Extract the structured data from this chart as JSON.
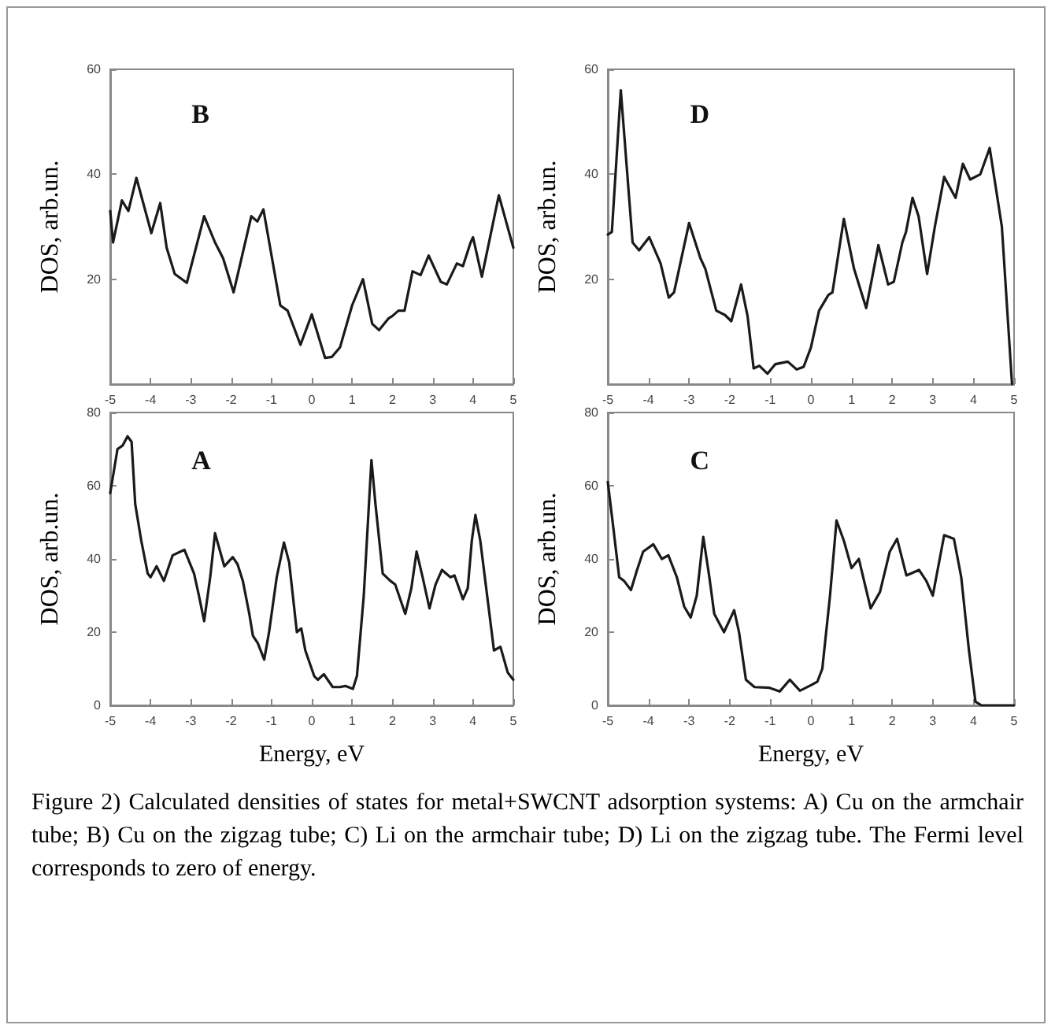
{
  "chart_data": [
    {
      "type": "line",
      "ylabel": "DOS, arb.un.",
      "annotations": [
        "B"
      ],
      "xlim": [
        -5,
        5
      ],
      "xticks": [
        -5,
        -4,
        -3,
        -2,
        -1,
        0,
        1,
        2,
        3,
        4,
        5
      ],
      "ylim": [
        0,
        60
      ],
      "yticks": [
        20,
        40,
        60
      ],
      "grid": false,
      "marker": "none",
      "line_style": "solid",
      "series": [
        {
          "color": "#1a1a1a",
          "x": [
            -5,
            -4.93,
            -4.71,
            -4.55,
            -4.35,
            -3.98,
            -3.76,
            -3.6,
            -3.4,
            -3.1,
            -2.67,
            -2.4,
            -2.2,
            -1.94,
            -1.5,
            -1.35,
            -1.2,
            -0.78,
            -0.6,
            -0.28,
            0,
            0.33,
            0.5,
            0.7,
            1.0,
            1.27,
            1.5,
            1.67,
            1.9,
            2.0,
            2.15,
            2.3,
            2.5,
            2.7,
            2.9,
            3.2,
            3.35,
            3.6,
            3.75,
            3.94,
            4.0,
            4.22,
            4.64,
            5
          ],
          "values": [
            33,
            27,
            35,
            33,
            39.3,
            28.8,
            34.5,
            26,
            21,
            19.3,
            32,
            27,
            24,
            17.5,
            32,
            31,
            33.3,
            15,
            14,
            7.5,
            13.3,
            5,
            5.2,
            7,
            15,
            20,
            11.5,
            10.3,
            12.5,
            13,
            14,
            14,
            21.5,
            20.8,
            24.5,
            19.5,
            19,
            23,
            22.5,
            27,
            28,
            20.5,
            36,
            26
          ]
        }
      ]
    },
    {
      "type": "line",
      "ylabel": "DOS, arb.un.",
      "annotations": [
        "D"
      ],
      "xlim": [
        -5,
        5
      ],
      "xticks": [
        -5,
        -4,
        -3,
        -2,
        -1,
        0,
        1,
        2,
        3,
        4,
        5
      ],
      "ylim": [
        0,
        60
      ],
      "yticks": [
        20,
        40,
        60
      ],
      "grid": false,
      "marker": "none",
      "line_style": "solid",
      "series": [
        {
          "color": "#1a1a1a",
          "x": [
            -5,
            -4.9,
            -4.68,
            -4.39,
            -4.23,
            -3.98,
            -3.7,
            -3.5,
            -3.37,
            -3.0,
            -2.72,
            -2.6,
            -2.33,
            -2.12,
            -1.96,
            -1.72,
            -1.56,
            -1.41,
            -1.27,
            -1.07,
            -0.88,
            -0.57,
            -0.35,
            -0.18,
            0,
            0.2,
            0.43,
            0.53,
            0.81,
            1.06,
            1.36,
            1.5,
            1.66,
            1.9,
            2.04,
            2.25,
            2.34,
            2.5,
            2.65,
            2.86,
            3.05,
            3.28,
            3.56,
            3.74,
            3.92,
            4.17,
            4.4,
            4.7,
            4.95
          ],
          "values": [
            28.5,
            29,
            56,
            27,
            25.5,
            28,
            23,
            16.5,
            17.5,
            30.7,
            24,
            22,
            14,
            13.2,
            12,
            19,
            13,
            3,
            3.5,
            2,
            3.8,
            4.3,
            2.8,
            3.3,
            7,
            14,
            17,
            17.5,
            31.5,
            22,
            14.5,
            20,
            26.5,
            19,
            19.5,
            27,
            29,
            35.5,
            32,
            21,
            30,
            39.5,
            35.5,
            42,
            39,
            40,
            45,
            30,
            0
          ]
        }
      ]
    },
    {
      "type": "line",
      "xlabel": "Energy, eV",
      "ylabel": "DOS, arb.un.",
      "annotations": [
        "A"
      ],
      "xlim": [
        -5,
        5
      ],
      "xticks": [
        -5,
        -4,
        -3,
        -2,
        -1,
        0,
        1,
        2,
        3,
        4,
        5
      ],
      "ylim": [
        0,
        80
      ],
      "yticks": [
        0,
        20,
        40,
        60,
        80
      ],
      "grid": false,
      "marker": "none",
      "line_style": "solid",
      "series": [
        {
          "color": "#1a1a1a",
          "x": [
            -5,
            -4.82,
            -4.69,
            -4.57,
            -4.47,
            -4.38,
            -4.23,
            -4.07,
            -4.0,
            -3.85,
            -3.67,
            -3.45,
            -3.26,
            -3.16,
            -2.92,
            -2.8,
            -2.67,
            -2.52,
            -2.4,
            -2.17,
            -1.96,
            -1.84,
            -1.71,
            -1.55,
            -1.46,
            -1.34,
            -1.18,
            -1.06,
            -0.87,
            -0.69,
            -0.56,
            -0.37,
            -0.26,
            -0.16,
            0.06,
            0.15,
            0.3,
            0.52,
            0.7,
            0.83,
            1.02,
            1.12,
            1.29,
            1.48,
            1.58,
            1.76,
            1.95,
            2.07,
            2.32,
            2.47,
            2.6,
            2.75,
            2.92,
            3.07,
            3.23,
            3.44,
            3.54,
            3.75,
            3.87,
            3.97,
            4.06,
            4.18,
            4.52,
            4.68,
            4.86,
            5
          ],
          "values": [
            58,
            70,
            71,
            73.5,
            72,
            55,
            45,
            36,
            35,
            38,
            34,
            41,
            42,
            42.5,
            36,
            30,
            23,
            35,
            47,
            38,
            40.5,
            38.5,
            34,
            25,
            19,
            17,
            12.5,
            20,
            35,
            44.5,
            39,
            20,
            21,
            15,
            8,
            7,
            8.5,
            5,
            5,
            5.3,
            4.5,
            8,
            30,
            67,
            55,
            36,
            34,
            33,
            25,
            32,
            42,
            35,
            26.5,
            33,
            37,
            35,
            35.5,
            29,
            32,
            45,
            52,
            45,
            15,
            16,
            9,
            7
          ]
        }
      ]
    },
    {
      "type": "line",
      "xlabel": "Energy, eV",
      "ylabel": "DOS, arb.un.",
      "annotations": [
        "C",
        "Figure 2) Calculated densities of states for metal+SWCNT adsorption systems: A) Cu on the armchair tube; B) Cu on the zigzag tube; C) Li on the armchair tube; D) Li on the zigzag tube. The Fermi level corresponds to zero of energy."
      ],
      "xlim": [
        -5,
        5
      ],
      "xticks": [
        -5,
        -4,
        -3,
        -2,
        -1,
        0,
        1,
        2,
        3,
        4,
        5
      ],
      "ylim": [
        0,
        80
      ],
      "yticks": [
        0,
        20,
        40,
        60,
        80
      ],
      "grid": false,
      "marker": "none",
      "line_style": "solid",
      "series": [
        {
          "color": "#1a1a1a",
          "x": [
            -5,
            -4.88,
            -4.72,
            -4.6,
            -4.43,
            -4.28,
            -4.13,
            -3.88,
            -3.67,
            -3.51,
            -3.3,
            -3.12,
            -2.96,
            -2.81,
            -2.65,
            -2.5,
            -2.38,
            -2.14,
            -1.89,
            -1.77,
            -1.6,
            -1.39,
            -1.02,
            -0.77,
            -0.52,
            -0.27,
            0,
            0.16,
            0.28,
            0.47,
            0.63,
            0.81,
            1.0,
            1.18,
            1.33,
            1.47,
            1.7,
            1.94,
            2.12,
            2.35,
            2.66,
            2.84,
            3.0,
            3.28,
            3.52,
            3.7,
            3.89,
            4.05,
            4.2,
            5
          ],
          "values": [
            61,
            50,
            35,
            34,
            31.5,
            37,
            42,
            44,
            40,
            41,
            35,
            27,
            24,
            30,
            46,
            35,
            25,
            20,
            26,
            20,
            7,
            5,
            4.8,
            3.8,
            7,
            4,
            5.5,
            6.5,
            10,
            30,
            50.5,
            45,
            37.5,
            40,
            33,
            26.5,
            31,
            42,
            45.5,
            35.5,
            37,
            34,
            30,
            46.5,
            45.5,
            35,
            15,
            1,
            0,
            0
          ]
        }
      ]
    }
  ]
}
